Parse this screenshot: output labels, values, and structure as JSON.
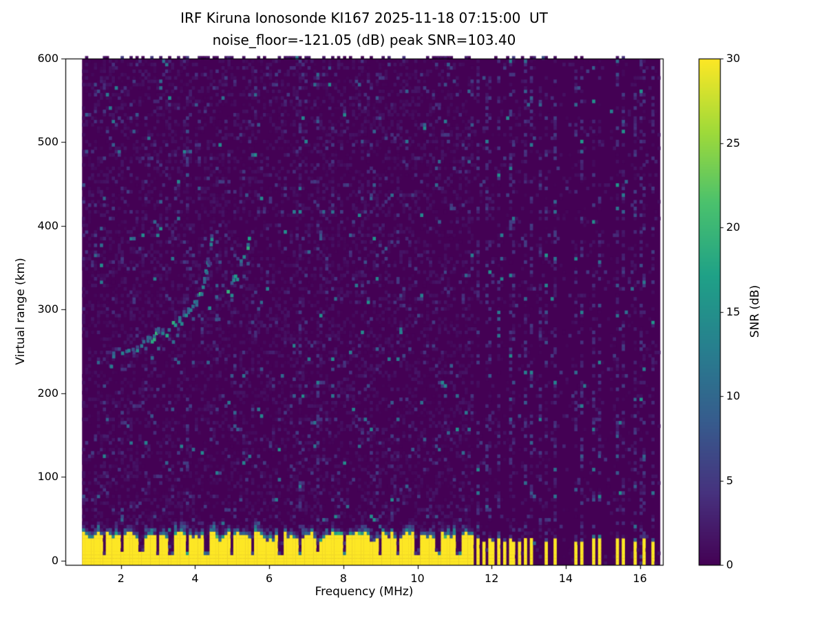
{
  "chart_data": {
    "type": "heatmap",
    "title": "IRF Kiruna Ionosonde KI167 2025-11-18 07:15:00  UT",
    "subtitle": "noise_floor=-121.05 (dB) peak SNR=103.40",
    "xlabel": "Frequency (MHz)",
    "ylabel": "Virtual range (km)",
    "colorbar_label": "SNR (dB)",
    "colormap": "viridis",
    "colormap_anchors": [
      "#440154",
      "#46327e",
      "#365c8d",
      "#277f8e",
      "#1fa187",
      "#4ac16d",
      "#a0da39",
      "#fde725"
    ],
    "grid": false,
    "legend": "none",
    "xlim": [
      0.5,
      16.62
    ],
    "ylim": [
      -5,
      600
    ],
    "clim": [
      0,
      30
    ],
    "xticks": [
      2,
      4,
      6,
      8,
      10,
      12,
      14,
      16
    ],
    "yticks": [
      0,
      100,
      200,
      300,
      400,
      500,
      600
    ],
    "colorbar_ticks": [
      0,
      5,
      10,
      15,
      20,
      25,
      30
    ],
    "noise_floor_db": -121.05,
    "peak_snr_db": 103.4,
    "station": "IRF Kiruna Ionosonde KI167",
    "timestamp_ut": "2025-11-18 07:15:00",
    "data_extent": {
      "fmin": 0.95,
      "fmax": 16.55,
      "rmin": -5,
      "rmax": 600
    },
    "grid_step": {
      "df": 0.08,
      "dr": 4
    },
    "ground_band": {
      "fmax": 11.55,
      "mean_top_km": 28,
      "fringe_km": 9,
      "notch_freqs": [
        1.55,
        2.05,
        2.55,
        3.0,
        3.35,
        3.78,
        4.3,
        5.0,
        5.55,
        6.3,
        6.85,
        7.32,
        8.05,
        9.0,
        9.45,
        10.0,
        10.55,
        11.1
      ]
    },
    "rf_bars": {
      "freqs": [
        11.65,
        11.78,
        11.92,
        12.06,
        12.2,
        12.38,
        12.55,
        12.72,
        12.9,
        13.08,
        13.5,
        13.72,
        14.28,
        14.45,
        14.75,
        14.92,
        15.4,
        15.55,
        15.9,
        16.08,
        16.35
      ],
      "half_width": 0.045,
      "mean_top_km": 24
    },
    "interference_stripes": [
      3.78,
      6.85,
      7.32,
      11.65,
      11.92,
      12.2,
      12.55,
      12.9,
      13.08,
      13.3,
      13.5,
      13.72,
      14.28,
      14.45,
      14.75,
      14.92,
      15.4,
      15.55,
      15.9,
      16.08,
      16.35
    ],
    "echo_traces": [
      {
        "name": "F-trace-ordinary",
        "points": [
          [
            1.7,
            236
          ],
          [
            2.0,
            244
          ],
          [
            2.4,
            252
          ],
          [
            2.8,
            261
          ],
          [
            3.2,
            272
          ],
          [
            3.6,
            286
          ],
          [
            3.9,
            300
          ],
          [
            4.1,
            314
          ],
          [
            4.25,
            338
          ],
          [
            4.35,
            362
          ],
          [
            4.45,
            390
          ]
        ]
      },
      {
        "name": "F-trace-extraordinary",
        "points": [
          [
            4.35,
            300
          ],
          [
            4.6,
            309
          ],
          [
            4.85,
            320
          ],
          [
            5.05,
            333
          ],
          [
            5.2,
            347
          ],
          [
            5.32,
            363
          ],
          [
            5.42,
            381
          ],
          [
            5.48,
            393
          ]
        ]
      }
    ],
    "seed": 167
  },
  "colors": {
    "page_bg": "#ffffff",
    "axis": "#000000",
    "text": "#000000"
  }
}
